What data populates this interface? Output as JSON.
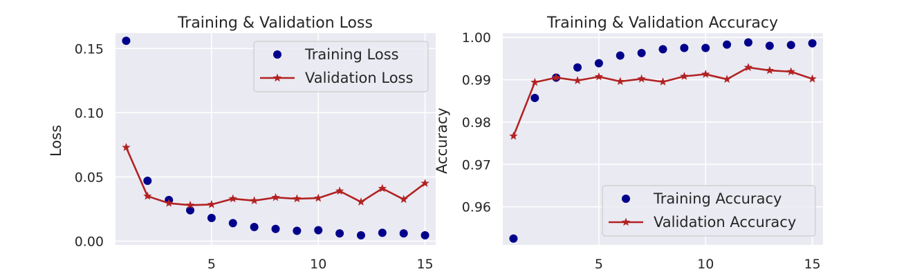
{
  "colors": {
    "panel_bg": "#eaeaf2",
    "grid": "#ffffff",
    "training": "#00008b",
    "validation": "#b22222",
    "legend_bg": "#eaeaf2",
    "legend_edge": "#cccccc"
  },
  "chart_data": [
    {
      "type": "line",
      "title": "Training & Validation Loss",
      "xlabel": "",
      "ylabel": "Loss",
      "x": [
        1,
        2,
        3,
        4,
        5,
        6,
        7,
        8,
        9,
        10,
        11,
        12,
        13,
        14,
        15
      ],
      "xlim": [
        0.5,
        15.5
      ],
      "ylim": [
        -0.003,
        0.162
      ],
      "xticks": [
        5,
        10,
        15
      ],
      "yticks": [
        0.0,
        0.05,
        0.1,
        0.15
      ],
      "ytick_labels": [
        "0.00",
        "0.05",
        "0.10",
        "0.15"
      ],
      "grid": true,
      "legend_position": "top-right",
      "series": [
        {
          "name": "Training Loss",
          "style": "markers",
          "marker": "circle",
          "color": "#00008b",
          "values": [
            0.156,
            0.047,
            0.032,
            0.024,
            0.018,
            0.014,
            0.011,
            0.0095,
            0.008,
            0.0085,
            0.006,
            0.0045,
            0.0065,
            0.006,
            0.0045
          ]
        },
        {
          "name": "Validation Loss",
          "style": "line-markers",
          "marker": "star",
          "color": "#b22222",
          "values": [
            0.073,
            0.035,
            0.0295,
            0.028,
            0.0285,
            0.033,
            0.0315,
            0.034,
            0.033,
            0.0335,
            0.039,
            0.0305,
            0.041,
            0.0325,
            0.045
          ]
        }
      ]
    },
    {
      "type": "line",
      "title": "Training & Validation Accuracy",
      "xlabel": "",
      "ylabel": "Accuracy",
      "x": [
        1,
        2,
        3,
        4,
        5,
        6,
        7,
        8,
        9,
        10,
        11,
        12,
        13,
        14,
        15
      ],
      "xlim": [
        0.5,
        15.5
      ],
      "ylim": [
        0.951,
        1.001
      ],
      "xticks": [
        5,
        10,
        15
      ],
      "yticks": [
        0.96,
        0.97,
        0.98,
        0.99,
        1.0
      ],
      "ytick_labels": [
        "0.96",
        "0.97",
        "0.98",
        "0.99",
        "1.00"
      ],
      "grid": true,
      "legend_position": "bottom-right",
      "series": [
        {
          "name": "Training Accuracy",
          "style": "markers",
          "marker": "circle",
          "color": "#00008b",
          "values": [
            0.9525,
            0.9857,
            0.9905,
            0.9929,
            0.9939,
            0.9957,
            0.9963,
            0.9972,
            0.9975,
            0.9975,
            0.9983,
            0.9988,
            0.998,
            0.9982,
            0.9986
          ]
        },
        {
          "name": "Validation Accuracy",
          "style": "line-markers",
          "marker": "star",
          "color": "#b22222",
          "values": [
            0.9767,
            0.9894,
            0.9905,
            0.9898,
            0.9907,
            0.9896,
            0.9902,
            0.9895,
            0.9908,
            0.9913,
            0.9901,
            0.9929,
            0.9922,
            0.9919,
            0.9902
          ]
        }
      ]
    }
  ]
}
